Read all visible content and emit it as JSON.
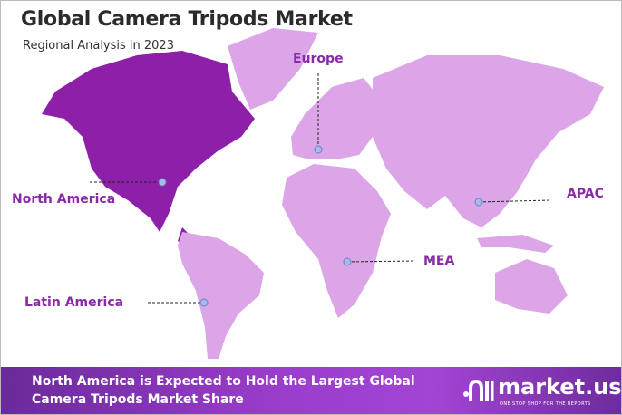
{
  "header": {
    "title": "Global Camera Tripods Market",
    "subtitle": "Regional Analysis in 2023"
  },
  "regions": [
    {
      "name": "North America",
      "highlighted": true
    },
    {
      "name": "Europe",
      "highlighted": false
    },
    {
      "name": "APAC",
      "highlighted": false
    },
    {
      "name": "MEA",
      "highlighted": false
    },
    {
      "name": "Latin America",
      "highlighted": false
    }
  ],
  "colors": {
    "highlight": "#8e1fa8",
    "other": "#dca5e8",
    "label": "#8a2aa8",
    "marker": "#a9b8e8"
  },
  "banner": {
    "text": "North America is Expected to Hold the Largest Global Camera Tripods Market Share"
  },
  "logo": {
    "name": "market.us",
    "tagline": "ONE STOP SHOP FOR THE REPORTS",
    "icon": "market-us-logo-icon"
  }
}
